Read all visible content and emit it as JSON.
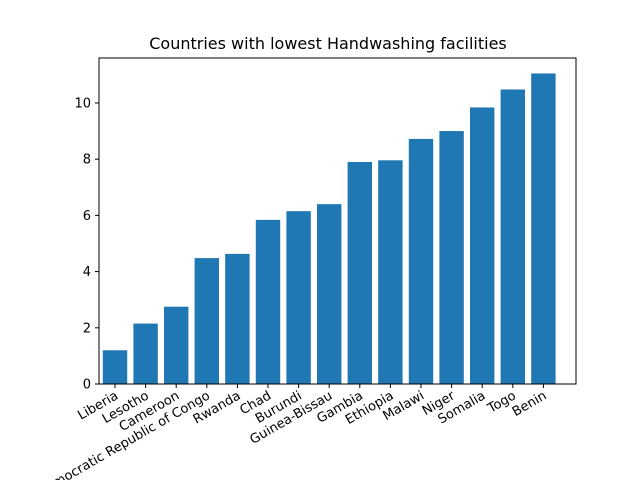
{
  "chart_data": {
    "type": "bar",
    "title": "Countries with lowest Handwashing facilities",
    "xlabel": "",
    "ylabel": "",
    "categories": [
      "Liberia",
      "Lesotho",
      "Cameroon",
      "Democratic Republic of Congo",
      "Rwanda",
      "Chad",
      "Burundi",
      "Guinea-Bissau",
      "Gambia",
      "Ethiopia",
      "Malawi",
      "Niger",
      "Somalia",
      "Togo",
      "Benin"
    ],
    "values": [
      1.2,
      2.15,
      2.75,
      4.48,
      4.63,
      5.84,
      6.15,
      6.4,
      7.9,
      7.96,
      8.72,
      9.0,
      9.84,
      10.48,
      11.05
    ],
    "ylim": [
      0,
      11.6
    ],
    "yticks": [
      0,
      2,
      4,
      6,
      8,
      10
    ],
    "bar_color": "#1f77b4",
    "grid": false
  }
}
